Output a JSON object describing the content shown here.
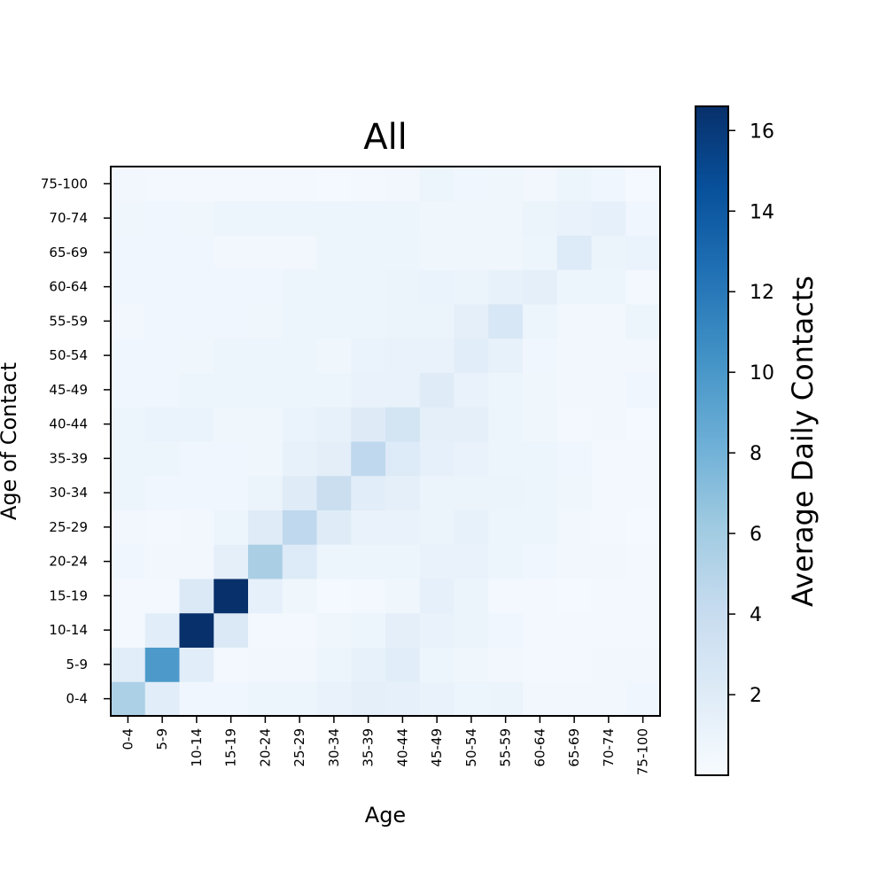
{
  "chart_data": {
    "type": "heatmap",
    "title": "All",
    "xlabel": "Age",
    "ylabel": "Age of Contact",
    "x_categories": [
      "0-4",
      "5-9",
      "10-14",
      "15-19",
      "20-24",
      "25-29",
      "30-34",
      "35-39",
      "40-44",
      "45-49",
      "50-54",
      "55-59",
      "60-64",
      "65-69",
      "70-74",
      "75-100"
    ],
    "y_categories": [
      "0-4",
      "5-9",
      "10-14",
      "15-19",
      "20-24",
      "25-29",
      "30-34",
      "35-39",
      "40-44",
      "45-49",
      "50-54",
      "55-59",
      "60-64",
      "65-69",
      "70-74",
      "75-100"
    ],
    "values": [
      [
        5.5,
        1.8,
        0.6,
        0.6,
        0.8,
        0.8,
        1.2,
        1.6,
        1.4,
        1.2,
        0.9,
        1.0,
        0.5,
        0.5,
        0.5,
        0.6
      ],
      [
        1.8,
        9.8,
        1.8,
        0.4,
        0.5,
        0.5,
        0.9,
        1.3,
        1.8,
        0.8,
        0.7,
        0.5,
        0.4,
        0.4,
        0.5,
        0.5
      ],
      [
        0.4,
        1.8,
        16.6,
        2.3,
        0.4,
        0.4,
        0.7,
        0.8,
        1.6,
        1.2,
        1.0,
        0.6,
        0.4,
        0.4,
        0.4,
        0.4
      ],
      [
        0.4,
        0.4,
        2.3,
        16.6,
        1.4,
        0.7,
        0.3,
        0.4,
        0.7,
        1.4,
        1.0,
        0.4,
        0.4,
        0.3,
        0.4,
        0.4
      ],
      [
        0.6,
        0.5,
        0.5,
        1.5,
        5.6,
        2.2,
        0.9,
        0.9,
        0.8,
        1.2,
        1.2,
        0.8,
        0.6,
        0.5,
        0.5,
        0.4
      ],
      [
        0.5,
        0.4,
        0.5,
        0.8,
        2.0,
        4.5,
        2.0,
        1.2,
        1.2,
        1.0,
        1.3,
        0.9,
        0.8,
        0.5,
        0.4,
        0.3
      ],
      [
        0.8,
        0.6,
        0.6,
        0.6,
        1.0,
        2.0,
        3.8,
        1.8,
        1.5,
        1.0,
        1.0,
        1.0,
        0.8,
        0.7,
        0.4,
        0.4
      ],
      [
        0.9,
        0.9,
        0.6,
        0.6,
        0.7,
        1.3,
        1.7,
        4.5,
        2.2,
        1.4,
        1.2,
        0.9,
        0.8,
        0.6,
        0.4,
        0.4
      ],
      [
        0.8,
        1.1,
        1.1,
        0.7,
        0.7,
        1.1,
        1.3,
        2.1,
        3.0,
        1.6,
        1.6,
        0.9,
        0.7,
        0.4,
        0.5,
        0.3
      ],
      [
        0.6,
        0.6,
        0.8,
        0.9,
        0.9,
        0.9,
        0.9,
        1.2,
        1.2,
        2.0,
        1.2,
        0.9,
        0.7,
        0.5,
        0.5,
        0.6
      ],
      [
        0.6,
        0.6,
        0.7,
        0.8,
        0.8,
        0.8,
        0.7,
        1.1,
        1.2,
        1.2,
        1.8,
        1.3,
        0.6,
        0.5,
        0.5,
        0.5
      ],
      [
        0.5,
        0.6,
        0.6,
        0.6,
        0.7,
        0.9,
        0.9,
        0.9,
        1.0,
        1.0,
        1.5,
        2.6,
        0.9,
        0.5,
        0.5,
        0.8
      ],
      [
        0.6,
        0.6,
        0.6,
        0.6,
        0.6,
        0.9,
        0.9,
        0.9,
        1.0,
        1.1,
        1.0,
        1.3,
        1.5,
        0.8,
        0.9,
        0.4
      ],
      [
        0.6,
        0.6,
        0.6,
        0.5,
        0.5,
        0.5,
        0.9,
        0.9,
        0.8,
        0.7,
        0.7,
        0.7,
        0.9,
        2.2,
        1.0,
        1.1
      ],
      [
        0.7,
        0.6,
        0.7,
        0.8,
        0.8,
        0.8,
        0.8,
        0.8,
        0.9,
        0.7,
        0.7,
        0.7,
        1.0,
        1.2,
        1.4,
        0.6
      ],
      [
        0.5,
        0.4,
        0.4,
        0.4,
        0.4,
        0.4,
        0.3,
        0.4,
        0.5,
        0.8,
        0.6,
        0.7,
        0.5,
        0.9,
        0.6,
        0.3
      ]
    ],
    "colorbar": {
      "label": "Average Daily Contacts",
      "min": 0,
      "max": 16.6,
      "ticks": [
        2,
        4,
        6,
        8,
        10,
        12,
        14,
        16
      ],
      "colormap": "Blues"
    },
    "grid": false
  }
}
